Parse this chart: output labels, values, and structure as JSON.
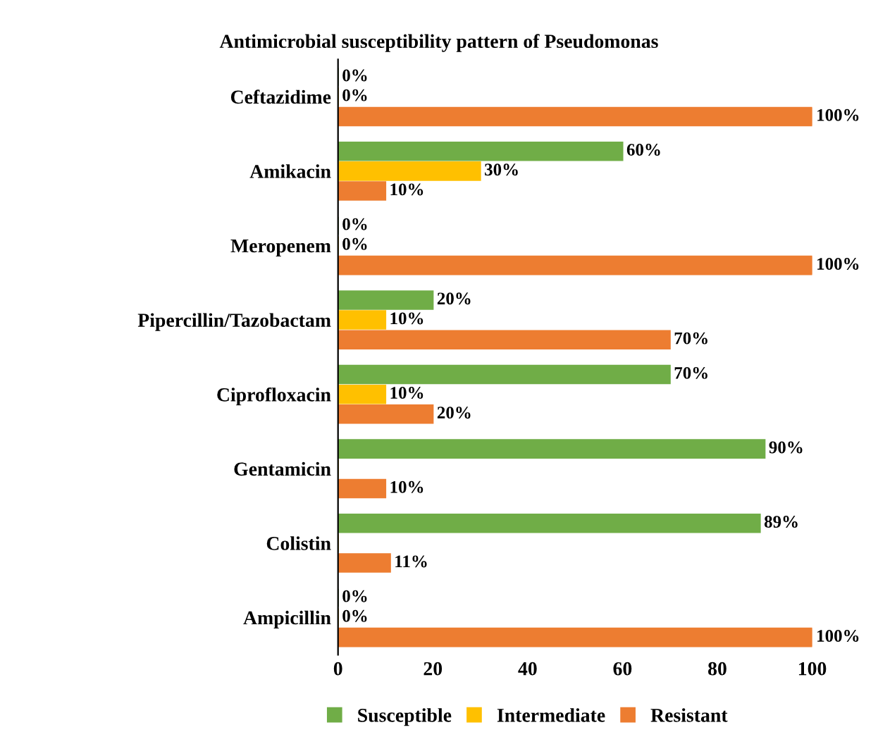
{
  "chart_data": {
    "type": "bar",
    "orientation": "horizontal",
    "title": "Antimicrobial susceptibility pattern of Pseudomonas",
    "categories": [
      "Ceftazidime",
      "Amikacin",
      "Meropenem",
      "Pipercillin/Tazobactam",
      "Ciprofloxacin",
      "Gentamicin",
      "Colistin",
      "Ampicillin"
    ],
    "series": [
      {
        "name": "Susceptible",
        "color": "#70ad47",
        "values": [
          0,
          60,
          0,
          20,
          70,
          90,
          89,
          0
        ],
        "value_labels": [
          "0%",
          "60%",
          "0%",
          "20%",
          "70%",
          "90%",
          "89%",
          "0%"
        ]
      },
      {
        "name": "Intermediate",
        "color": "#ffc000",
        "values": [
          0,
          30,
          0,
          10,
          10,
          0,
          0,
          0
        ],
        "value_labels": [
          "0%",
          "30%",
          "0%",
          "10%",
          "10%",
          null,
          null,
          "0%"
        ]
      },
      {
        "name": "Resistant",
        "color": "#ed7d31",
        "values": [
          100,
          10,
          100,
          70,
          20,
          10,
          11,
          100
        ],
        "value_labels": [
          "100%",
          "10%",
          "100%",
          "70%",
          "20%",
          "10%",
          "11%",
          "100%"
        ]
      }
    ],
    "xlim": [
      0,
      100
    ],
    "xticks": [
      0,
      20,
      40,
      60,
      80,
      100
    ],
    "legend": "bottom",
    "grid": false
  }
}
